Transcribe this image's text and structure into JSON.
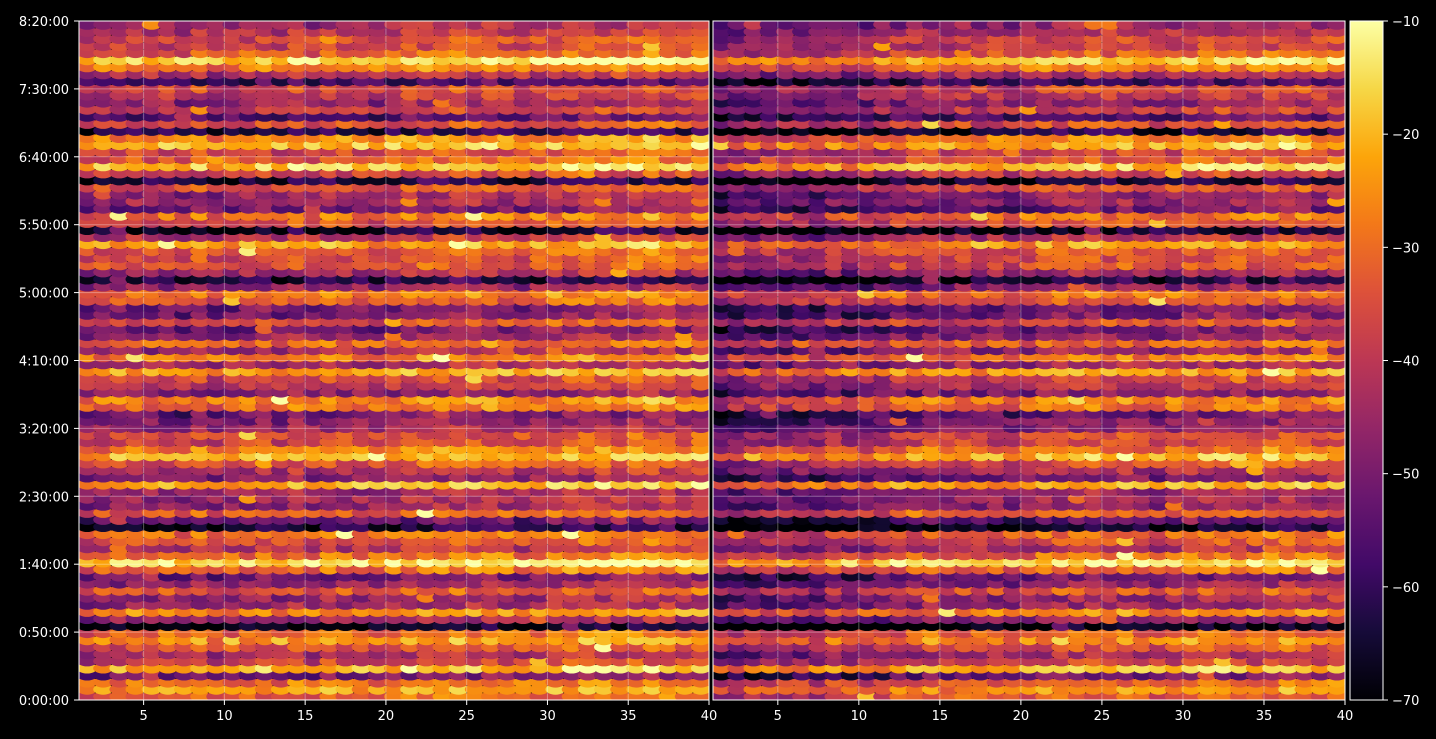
{
  "chart_data": [
    {
      "type": "heatmap",
      "panel": "left",
      "x_ticks": [
        5,
        10,
        15,
        20,
        25,
        30,
        35,
        40
      ],
      "xlim": [
        1,
        40
      ],
      "y_tick_labels": [
        "0:00:00",
        "0:50:00",
        "1:40:00",
        "2:30:00",
        "3:20:00",
        "4:10:00",
        "5:00:00",
        "5:50:00",
        "6:40:00",
        "7:30:00",
        "8:20:00"
      ],
      "ylim_seconds": [
        0,
        30000
      ],
      "colormap": "inferno",
      "grid": true
    },
    {
      "type": "heatmap",
      "panel": "right",
      "x_ticks": [
        5,
        10,
        15,
        20,
        25,
        30,
        35,
        40
      ],
      "xlim": [
        1,
        40
      ],
      "colormap": "inferno",
      "grid": true
    }
  ],
  "colorbar": {
    "ticks": [
      -10,
      -20,
      -30,
      -40,
      -50,
      -60,
      -70
    ],
    "tick_labels": [
      "−10",
      "−20",
      "−30",
      "−40",
      "−50",
      "−60",
      "−70"
    ],
    "range": [
      -70,
      -10
    ],
    "colormap": "inferno"
  },
  "colors": {
    "background": "#000000",
    "text": "#ffffff",
    "grid": "#ffffff"
  }
}
